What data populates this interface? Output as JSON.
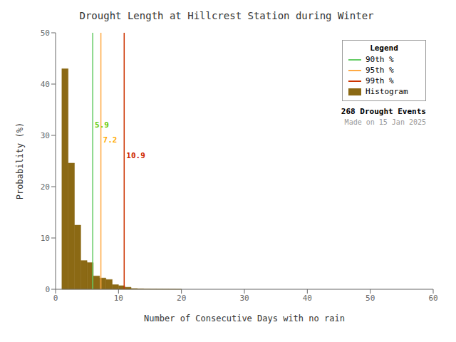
{
  "chart_data": {
    "type": "histogram",
    "title": "Drought Length at Hillcrest Station during Winter",
    "x_label": "Number of Consecutive Days with no rain",
    "y_label": "Probability (%)",
    "name": "Histogram",
    "color": "#8B6914",
    "bins": [
      1,
      2,
      3,
      4,
      5,
      6,
      7,
      8,
      9,
      10,
      11,
      12,
      13,
      14,
      15,
      16,
      17,
      18,
      19,
      20,
      21
    ],
    "values": [
      43.0,
      24.6,
      12.5,
      5.6,
      5.2,
      2.6,
      2.2,
      1.9,
      0.9,
      0.7,
      0.4,
      0.15,
      0.1,
      0.07,
      0.05,
      0.04,
      0.03,
      0.02,
      0.01,
      0.0
    ],
    "xlim": [
      0,
      60
    ],
    "ylim": [
      0,
      50
    ],
    "xticks": [
      0,
      10,
      20,
      30,
      40,
      50,
      60
    ],
    "yticks": [
      0,
      10,
      20,
      30,
      40,
      50
    ],
    "legend": "upper right",
    "legend_title": "Legend",
    "lines": [
      {
        "name": "90th %",
        "x": 5.9,
        "color": "#66cc66",
        "label": "5.9",
        "label_color": "#66cc00",
        "label_y": 32
      },
      {
        "name": "95th %",
        "x": 7.2,
        "color": "#ffaa44",
        "label": "7.2",
        "label_color": "#ffaa00",
        "label_y": 29
      },
      {
        "name": "99th %",
        "x": 10.9,
        "color": "#cc3300",
        "label": "10.9",
        "label_color": "#cc2200",
        "label_y": 26
      }
    ],
    "annotations": [
      "268 Drought Events",
      "Made on 15 Jan 2025"
    ]
  }
}
